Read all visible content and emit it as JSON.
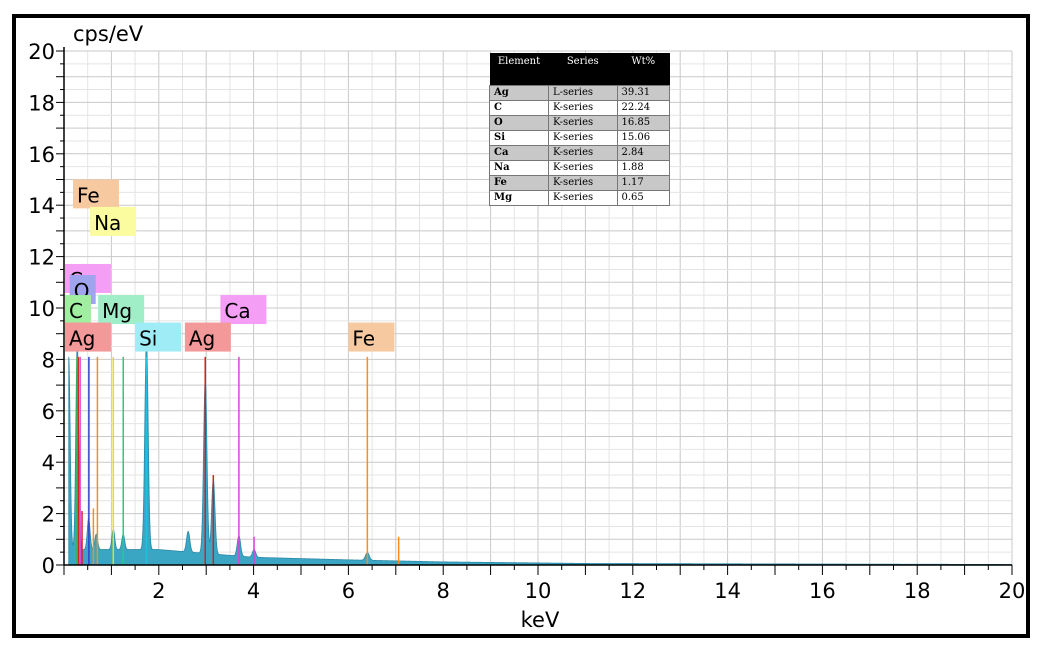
{
  "chart_data": {
    "type": "line",
    "ylabel": "cps/eV",
    "xlabel": "keV",
    "xlim": [
      0,
      20
    ],
    "ylim": [
      0,
      20
    ],
    "x_ticks": [
      2,
      4,
      6,
      8,
      10,
      12,
      14,
      16,
      18,
      20
    ],
    "y_ticks": [
      0,
      2,
      4,
      6,
      8,
      10,
      12,
      14,
      16,
      18,
      20
    ],
    "grid": true,
    "spectrum": {
      "name": "spectrum",
      "color": "#3aa6c4",
      "peaks": [
        {
          "x": 0.1,
          "y": 7.5,
          "w": 0.03
        },
        {
          "x": 0.28,
          "y": 8.1,
          "w": 0.03
        },
        {
          "x": 0.52,
          "y": 1.2,
          "w": 0.03
        },
        {
          "x": 0.68,
          "y": 0.6,
          "w": 0.03
        },
        {
          "x": 1.04,
          "y": 0.8,
          "w": 0.03
        },
        {
          "x": 1.25,
          "y": 0.6,
          "w": 0.03
        },
        {
          "x": 1.74,
          "y": 8.2,
          "w": 0.035
        },
        {
          "x": 2.62,
          "y": 0.8,
          "w": 0.035
        },
        {
          "x": 2.98,
          "y": 6.8,
          "w": 0.035
        },
        {
          "x": 3.15,
          "y": 2.9,
          "w": 0.035
        },
        {
          "x": 3.69,
          "y": 0.8,
          "w": 0.035
        },
        {
          "x": 4.01,
          "y": 0.3,
          "w": 0.035
        },
        {
          "x": 6.4,
          "y": 0.3,
          "w": 0.04
        }
      ],
      "background": [
        {
          "x": 0.1,
          "y": 0.6
        },
        {
          "x": 2.0,
          "y": 0.6
        },
        {
          "x": 4.0,
          "y": 0.3
        },
        {
          "x": 6.0,
          "y": 0.2
        },
        {
          "x": 8.0,
          "y": 0.12
        },
        {
          "x": 11.0,
          "y": 0.06
        },
        {
          "x": 20.0,
          "y": 0.02
        }
      ]
    },
    "marker_lines": [
      {
        "element": "Ag",
        "x": 0.3,
        "y": 8.1,
        "color": "#d42020"
      },
      {
        "element": "C",
        "x": 0.277,
        "y": 8.1,
        "color": "#2ec02e"
      },
      {
        "element": "Ca",
        "x": 0.34,
        "y": 8.1,
        "color": "#e040e0"
      },
      {
        "element": "O",
        "x": 0.525,
        "y": 8.1,
        "color": "#3040d0"
      },
      {
        "element": "Fe",
        "x": 0.705,
        "y": 8.1,
        "color": "#ff8c1a"
      },
      {
        "element": "Na",
        "x": 1.04,
        "y": 8.1,
        "color": "#e0e020"
      },
      {
        "element": "Mg",
        "x": 1.25,
        "y": 8.1,
        "color": "#20d080"
      },
      {
        "element": "Si",
        "x": 1.74,
        "y": 8.1,
        "color": "#20c0e0"
      },
      {
        "element": "Ag",
        "x": 2.98,
        "y": 8.1,
        "color": "#d42020"
      },
      {
        "element": "Ag",
        "x": 3.15,
        "y": 3.5,
        "color": "#d42020"
      },
      {
        "element": "Ca",
        "x": 3.69,
        "y": 8.1,
        "color": "#e040e0"
      },
      {
        "element": "Ca",
        "x": 4.01,
        "y": 1.1,
        "color": "#e040e0"
      },
      {
        "element": "Fe",
        "x": 6.4,
        "y": 8.1,
        "color": "#ff8c1a"
      },
      {
        "element": "Fe",
        "x": 7.06,
        "y": 1.1,
        "color": "#ff8c1a"
      },
      {
        "element": "Fe",
        "x": 0.62,
        "y": 2.2,
        "color": "#ff8c1a"
      },
      {
        "element": "Ag",
        "x": 0.38,
        "y": 2.1,
        "color": "#d42020"
      }
    ],
    "peak_labels": [
      {
        "text": "Fe",
        "x": 0.19,
        "y": 14.42,
        "bg": "#f7c9a0"
      },
      {
        "text": "Na",
        "x": 0.55,
        "y": 13.35,
        "bg": "#fbfba0"
      },
      {
        "text": "Ca",
        "x": 0.02,
        "y": 11.13,
        "bg": "#f59ef5"
      },
      {
        "text": "O",
        "x": 0.12,
        "y": 10.7,
        "bg": "#a0a4ee"
      },
      {
        "text": "C",
        "x": 0.02,
        "y": 9.92,
        "bg": "#a0eea0"
      },
      {
        "text": "Mg",
        "x": 0.72,
        "y": 9.92,
        "bg": "#a0eec8"
      },
      {
        "text": "Ca",
        "x": 3.3,
        "y": 9.92,
        "bg": "#f59ef5"
      },
      {
        "text": "Ag",
        "x": 0.02,
        "y": 8.85,
        "bg": "#f39999"
      },
      {
        "text": "Si",
        "x": 1.5,
        "y": 8.85,
        "bg": "#a0ecf6"
      },
      {
        "text": "Ag",
        "x": 2.55,
        "y": 8.85,
        "bg": "#f39999"
      },
      {
        "text": "Fe",
        "x": 6.0,
        "y": 8.85,
        "bg": "#f7c9a0"
      }
    ]
  },
  "composition_table": {
    "headers": [
      "Element",
      "Series",
      "Wt%"
    ],
    "rows": [
      [
        "Ag",
        "L-series",
        "39.31"
      ],
      [
        "C",
        "K-series",
        "22.24"
      ],
      [
        "O",
        "K-series",
        "16.85"
      ],
      [
        "Si",
        "K-series",
        "15.06"
      ],
      [
        "Ca",
        "K-series",
        "2.84"
      ],
      [
        "Na",
        "K-series",
        "1.88"
      ],
      [
        "Fe",
        "K-series",
        "1.17"
      ],
      [
        "Mg",
        "K-series",
        "0.65"
      ]
    ]
  }
}
